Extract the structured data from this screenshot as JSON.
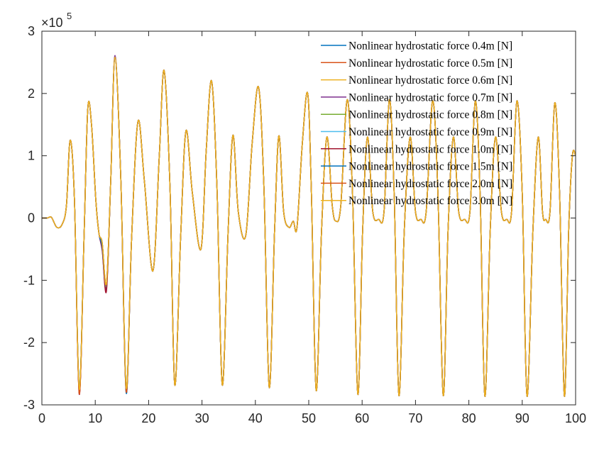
{
  "chart_data": {
    "type": "line",
    "title": "",
    "xlabel": "",
    "ylabel": "",
    "xlim": [
      0,
      100
    ],
    "ylim": [
      -300000,
      300000
    ],
    "y_multiplier_label": {
      "base": "×10",
      "exponent": "5"
    },
    "x_ticks": [
      0,
      10,
      20,
      30,
      40,
      50,
      60,
      70,
      80,
      90,
      100
    ],
    "x_tick_labels": [
      "0",
      "10",
      "20",
      "30",
      "40",
      "50",
      "60",
      "70",
      "80",
      "90",
      "100"
    ],
    "y_ticks": [
      -300000,
      -200000,
      -100000,
      0,
      100000,
      200000,
      300000
    ],
    "y_tick_labels": [
      "-3",
      "-2",
      "-1",
      "0",
      "1",
      "2",
      "3"
    ],
    "grid": false,
    "legend_position": "top-right",
    "series": [
      {
        "name": "Nonlinear hydrostatic force 0.4m [N]",
        "color": "#0072BD",
        "deviations": [
          {
            "t": 7.0,
            "dy": -4000
          },
          {
            "t": 12.1,
            "dy": -6000
          },
          {
            "t": 15.8,
            "dy": -3000
          }
        ]
      },
      {
        "name": "Nonlinear hydrostatic force 0.5m [N]",
        "color": "#D95319",
        "deviations": [
          {
            "t": 7.0,
            "dy": -6000
          },
          {
            "t": 12.1,
            "dy": -4000
          },
          {
            "t": 15.8,
            "dy": -5000
          }
        ]
      },
      {
        "name": "Nonlinear hydrostatic force 0.6m [N]",
        "color": "#EDB120",
        "deviations": []
      },
      {
        "name": "Nonlinear hydrostatic force 0.7m [N]",
        "color": "#7E2F8E",
        "deviations": [
          {
            "t": 7.0,
            "dy": -5000
          },
          {
            "t": 11.3,
            "dy": -12000
          },
          {
            "t": 12.1,
            "dy": -8000
          },
          {
            "t": 13.7,
            "dy": 3000
          }
        ]
      },
      {
        "name": "Nonlinear hydrostatic force 0.8m [N]",
        "color": "#77AC30",
        "deviations": [
          {
            "t": 12.1,
            "dy": -3000
          }
        ]
      },
      {
        "name": "Nonlinear hydrostatic force 0.9m [N]",
        "color": "#4DBEEE",
        "deviations": [
          {
            "t": 12.1,
            "dy": -2000
          }
        ]
      },
      {
        "name": "Nonlinear hydrostatic force 1.0m [N]",
        "color": "#A2142F",
        "deviations": [
          {
            "t": 7.0,
            "dy": -8000
          },
          {
            "t": 11.3,
            "dy": -10000
          },
          {
            "t": 12.1,
            "dy": -12000
          },
          {
            "t": 15.8,
            "dy": -7000
          }
        ]
      },
      {
        "name": "Nonlinear hydrostatic force 1.5m [N]",
        "color": "#0072BD",
        "deviations": [
          {
            "t": 11.3,
            "dy": -6000
          },
          {
            "t": 15.8,
            "dy": -8000
          }
        ]
      },
      {
        "name": "Nonlinear hydrostatic force 2.0m [N]",
        "color": "#D95319",
        "deviations": [
          {
            "t": 7.0,
            "dy": -7000
          },
          {
            "t": 15.8,
            "dy": -6000
          }
        ]
      },
      {
        "name": "Nonlinear hydrostatic force 3.0m [N]",
        "color": "#EDB120",
        "deviations": []
      }
    ],
    "base_curve": {
      "x": [
        0,
        1,
        1.8,
        2.8,
        3.8,
        4.6,
        5.3,
        6.1,
        7.0,
        7.9,
        8.6,
        9.3,
        10.1,
        10.7,
        11.3,
        12.1,
        12.9,
        13.7,
        14.8,
        15.8,
        16.8,
        18.0,
        19.2,
        20.8,
        22.0,
        22.9,
        24.0,
        24.9,
        26.0,
        27.0,
        28.2,
        29.8,
        30.8,
        31.8,
        32.8,
        33.8,
        34.9,
        35.8,
        36.8,
        38.2,
        39.4,
        40.6,
        41.6,
        42.6,
        43.6,
        44.4,
        45.3,
        46.3,
        47.1,
        47.8,
        48.8,
        49.8,
        50.5,
        51.4,
        52.4,
        53.4,
        54.4,
        55.1,
        56.0,
        57.2,
        58.2,
        59.2,
        60.1,
        61.0,
        62.0,
        63.1,
        64.1,
        65.1,
        66.0,
        66.9,
        67.9,
        69.0,
        70.0,
        71.0,
        72.0,
        73.2,
        74.2,
        75.2,
        76.1,
        77.1,
        78.1,
        79.2,
        80.2,
        81.2,
        82.1,
        83.0,
        84.0,
        85.0,
        86.1,
        87.1,
        88.0,
        89.0,
        90.0,
        90.9,
        92.0,
        93.0,
        93.8,
        94.4,
        95.2,
        96.1,
        97.0,
        97.9,
        98.7,
        99.4,
        100
      ],
      "y": [
        0,
        0,
        1000,
        -15000,
        -10000,
        20000,
        125000,
        30000,
        -275000,
        -30000,
        175000,
        150000,
        30000,
        -25000,
        -40000,
        -105000,
        60000,
        258000,
        60000,
        -273000,
        -35000,
        155000,
        60000,
        -85000,
        100000,
        237000,
        50000,
        -268000,
        -30000,
        140000,
        40000,
        -50000,
        110000,
        220000,
        50000,
        -268000,
        -20000,
        133000,
        10000,
        -28000,
        120000,
        210000,
        50000,
        -272000,
        -20000,
        132000,
        10000,
        -15000,
        -5000,
        -15000,
        120000,
        200000,
        40000,
        -277000,
        -20000,
        130000,
        20000,
        -5000,
        20000,
        190000,
        40000,
        -283000,
        -20000,
        130000,
        10000,
        -2000,
        10000,
        190000,
        40000,
        -285000,
        -20000,
        130000,
        10000,
        -2000,
        10000,
        188000,
        40000,
        -285000,
        -20000,
        130000,
        10000,
        -2000,
        10000,
        188000,
        40000,
        -286000,
        -20000,
        130000,
        10000,
        -2000,
        10000,
        188000,
        40000,
        -286000,
        -20000,
        130000,
        10000,
        -2000,
        10000,
        185000,
        40000,
        -286000,
        -20000,
        100000,
        100000
      ]
    }
  }
}
